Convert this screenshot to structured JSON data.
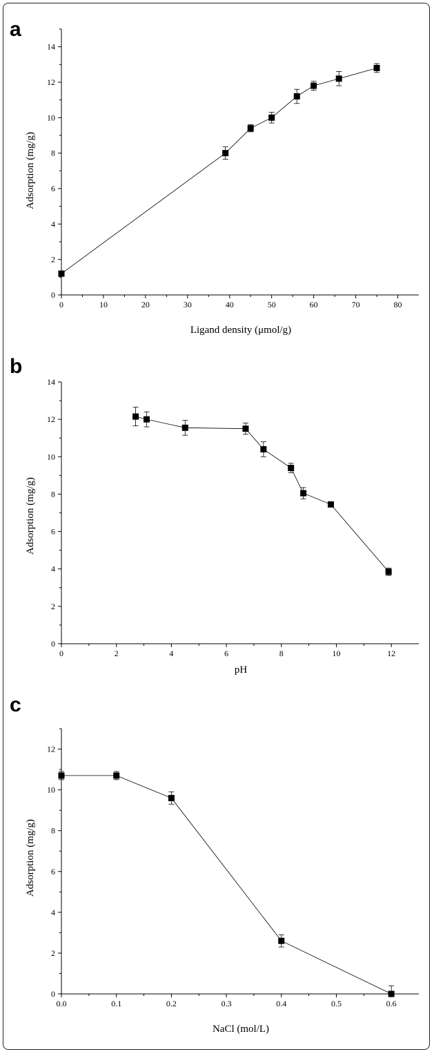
{
  "chart_data": [
    {
      "panel": "a",
      "type": "line",
      "xlabel": "Ligand density (μmol/g)",
      "ylabel": "Adsorption (mg/g)",
      "xlim": [
        0,
        85
      ],
      "ylim": [
        0,
        15
      ],
      "xticks": [
        0,
        10,
        20,
        30,
        40,
        50,
        60,
        70,
        80
      ],
      "yticks": [
        0,
        2,
        4,
        6,
        8,
        10,
        12,
        14
      ],
      "series": [
        {
          "x": [
            0,
            39,
            45,
            50,
            56,
            60,
            66,
            75
          ],
          "y": [
            1.2,
            8.0,
            9.4,
            10.0,
            11.2,
            11.8,
            12.2,
            12.8
          ],
          "err": [
            0.15,
            0.35,
            0.2,
            0.3,
            0.4,
            0.25,
            0.4,
            0.25
          ]
        }
      ]
    },
    {
      "panel": "b",
      "type": "line",
      "xlabel": "pH",
      "ylabel": "Adsorption (mg/g)",
      "xlim": [
        0,
        13
      ],
      "ylim": [
        0,
        14
      ],
      "xticks": [
        0,
        2,
        4,
        6,
        8,
        10,
        12
      ],
      "yticks": [
        0,
        2,
        4,
        6,
        8,
        10,
        12,
        14
      ],
      "series": [
        {
          "x": [
            2.7,
            3.1,
            4.5,
            6.7,
            7.35,
            8.35,
            8.8,
            9.8,
            11.9
          ],
          "y": [
            12.15,
            12.0,
            11.55,
            11.5,
            10.4,
            9.4,
            8.05,
            7.45,
            3.85
          ],
          "err": [
            0.5,
            0.4,
            0.4,
            0.3,
            0.4,
            0.25,
            0.3,
            0.1,
            0.2
          ]
        }
      ]
    },
    {
      "panel": "c",
      "type": "line",
      "xlabel": "NaCl (mol/L)",
      "ylabel": "Adsorption (mg/g)",
      "xlim": [
        0,
        0.65
      ],
      "ylim": [
        0,
        13
      ],
      "xticks": [
        "0.0",
        "0.1",
        "0.2",
        "0.3",
        "0.4",
        "0.5",
        "0.6"
      ],
      "yticks": [
        0,
        2,
        4,
        6,
        8,
        10,
        12
      ],
      "series": [
        {
          "x": [
            0.0,
            0.1,
            0.2,
            0.4,
            0.6
          ],
          "y": [
            10.7,
            10.7,
            9.6,
            2.6,
            0.0
          ],
          "err": [
            0.2,
            0.2,
            0.3,
            0.3,
            0.4
          ]
        }
      ]
    }
  ]
}
